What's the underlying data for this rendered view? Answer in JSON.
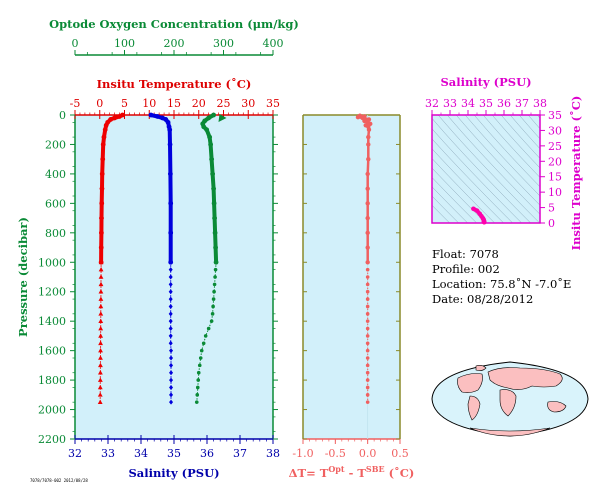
{
  "chart_data": [
    {
      "type": "line",
      "panel": "profile",
      "axes": {
        "oxygen": {
          "label": "Optode Oxygen Concentration (μm/kg)",
          "range": [
            0,
            400
          ],
          "ticks": [
            0,
            100,
            200,
            300,
            400
          ],
          "color": "#0a8a36"
        },
        "temperature": {
          "label": "Insitu Temperature (˚C)",
          "range": [
            -5,
            35
          ],
          "ticks": [
            -5,
            0,
            5,
            10,
            15,
            20,
            25,
            30,
            35
          ],
          "color": "#dd0000"
        },
        "salinity": {
          "label": "Salinity (PSU)",
          "range": [
            32,
            38
          ],
          "ticks": [
            32,
            33,
            34,
            35,
            36,
            37,
            38
          ],
          "color": "#0000aa"
        },
        "pressure": {
          "label": "Pressure (decibar)",
          "range": [
            0,
            2200
          ],
          "ticks": [
            0,
            200,
            400,
            600,
            800,
            1000,
            1200,
            1400,
            1600,
            1800,
            2000,
            2200
          ],
          "color": "#0a8a36",
          "inverted": true
        }
      },
      "grid": false,
      "series": [
        {
          "key": "temperature",
          "axis": "temperature",
          "color": "#ee0000",
          "points": [
            [
              0,
              4.6
            ],
            [
              10,
              4.0
            ],
            [
              20,
              3.0
            ],
            [
              30,
              2.2
            ],
            [
              50,
              1.6
            ],
            [
              70,
              1.3
            ],
            [
              100,
              1.1
            ],
            [
              150,
              0.85
            ],
            [
              200,
              0.7
            ],
            [
              300,
              0.6
            ],
            [
              400,
              0.5
            ],
            [
              500,
              0.45
            ],
            [
              600,
              0.4
            ],
            [
              700,
              0.35
            ],
            [
              800,
              0.33
            ],
            [
              900,
              0.3
            ],
            [
              1000,
              0.28
            ]
          ],
          "deep": [
            [
              1000,
              0.28
            ],
            [
              1050,
              0.27
            ],
            [
              1100,
              0.26
            ],
            [
              1150,
              0.25
            ],
            [
              1200,
              0.24
            ],
            [
              1250,
              0.23
            ],
            [
              1300,
              0.22
            ],
            [
              1350,
              0.21
            ],
            [
              1400,
              0.2
            ],
            [
              1450,
              0.19
            ],
            [
              1500,
              0.18
            ],
            [
              1550,
              0.17
            ],
            [
              1600,
              0.16
            ],
            [
              1650,
              0.15
            ],
            [
              1700,
              0.14
            ],
            [
              1750,
              0.13
            ],
            [
              1800,
              0.12
            ],
            [
              1850,
              0.11
            ],
            [
              1900,
              0.1
            ],
            [
              1950,
              0.09
            ]
          ],
          "deep_marker": "triangle"
        },
        {
          "key": "salinity",
          "axis": "salinity",
          "color": "#0000dd",
          "points": [
            [
              0,
              34.3
            ],
            [
              10,
              34.5
            ],
            [
              20,
              34.65
            ],
            [
              30,
              34.75
            ],
            [
              50,
              34.82
            ],
            [
              80,
              34.85
            ],
            [
              100,
              34.87
            ],
            [
              200,
              34.88
            ],
            [
              400,
              34.89
            ],
            [
              600,
              34.9
            ],
            [
              800,
              34.9
            ],
            [
              1000,
              34.9
            ]
          ],
          "deep": [
            [
              1000,
              34.9
            ],
            [
              1050,
              34.9
            ],
            [
              1100,
              34.9
            ],
            [
              1150,
              34.9
            ],
            [
              1200,
              34.9
            ],
            [
              1250,
              34.9
            ],
            [
              1300,
              34.9
            ],
            [
              1350,
              34.9
            ],
            [
              1400,
              34.9
            ],
            [
              1450,
              34.9
            ],
            [
              1500,
              34.9
            ],
            [
              1550,
              34.9
            ],
            [
              1600,
              34.91
            ],
            [
              1650,
              34.91
            ],
            [
              1700,
              34.91
            ],
            [
              1750,
              34.91
            ],
            [
              1800,
              34.91
            ],
            [
              1850,
              34.91
            ],
            [
              1900,
              34.91
            ],
            [
              1950,
              34.91
            ]
          ],
          "deep_marker": "diamond"
        },
        {
          "key": "oxygen",
          "axis": "oxygen",
          "color": "#0a8a36",
          "points": [
            [
              0,
              280
            ],
            [
              20,
              270
            ],
            [
              40,
              262
            ],
            [
              60,
              258
            ],
            [
              80,
              260
            ],
            [
              100,
              266
            ],
            [
              150,
              272
            ],
            [
              200,
              274
            ],
            [
              300,
              276
            ],
            [
              400,
              278
            ],
            [
              500,
              280
            ],
            [
              600,
              281
            ],
            [
              700,
              282
            ],
            [
              800,
              283
            ],
            [
              900,
              284
            ],
            [
              1000,
              285
            ]
          ],
          "deep": [
            [
              1000,
              285
            ],
            [
              1050,
              284
            ],
            [
              1100,
              283
            ],
            [
              1150,
              282
            ],
            [
              1200,
              281
            ],
            [
              1250,
              280
            ],
            [
              1300,
              279
            ],
            [
              1350,
              278
            ],
            [
              1400,
              276
            ],
            [
              1450,
              270
            ],
            [
              1500,
              264
            ],
            [
              1550,
              260
            ],
            [
              1600,
              256
            ],
            [
              1650,
              254
            ],
            [
              1700,
              252
            ],
            [
              1750,
              250
            ],
            [
              1800,
              249
            ],
            [
              1850,
              248
            ],
            [
              1900,
              247
            ],
            [
              1950,
              246
            ]
          ],
          "deep_marker": "circle"
        }
      ],
      "oxygen_arrow": {
        "pressure": 20,
        "value": 298
      }
    },
    {
      "type": "scatter",
      "panel": "delta-t",
      "xlabel_parts": [
        "ΔT= T",
        "Opt",
        " - T",
        "SBE",
        " (˚C)"
      ],
      "xlim": [
        -1.0,
        0.5
      ],
      "xticks": [
        "-1.0",
        "-0.5",
        "0.0",
        "0.5"
      ],
      "xtick_values": [
        -1.0,
        -0.5,
        0.0,
        0.5
      ],
      "color": "#f06060",
      "points": [
        [
          5,
          -0.12
        ],
        [
          10,
          -0.05
        ],
        [
          15,
          -0.15
        ],
        [
          20,
          -0.08
        ],
        [
          30,
          0.02
        ],
        [
          40,
          -0.05
        ],
        [
          50,
          0.0
        ],
        [
          60,
          0.04
        ],
        [
          70,
          -0.03
        ],
        [
          80,
          0.01
        ],
        [
          100,
          0.02
        ],
        [
          150,
          0.01
        ],
        [
          200,
          0.01
        ],
        [
          300,
          0.01
        ],
        [
          400,
          0.0
        ],
        [
          500,
          0.0
        ],
        [
          600,
          0.0
        ],
        [
          700,
          0.0
        ],
        [
          800,
          0.0
        ],
        [
          900,
          0.0
        ],
        [
          1000,
          0.0
        ]
      ],
      "deep": [
        [
          1050,
          0.0
        ],
        [
          1100,
          0.0
        ],
        [
          1150,
          0.0
        ],
        [
          1200,
          0.0
        ],
        [
          1250,
          0.0
        ],
        [
          1300,
          0.0
        ],
        [
          1350,
          0.0
        ],
        [
          1400,
          0.0
        ],
        [
          1450,
          0.0
        ],
        [
          1500,
          0.0
        ],
        [
          1550,
          0.0
        ],
        [
          1600,
          0.0
        ],
        [
          1650,
          0.0
        ],
        [
          1700,
          0.0
        ],
        [
          1750,
          0.0
        ],
        [
          1800,
          0.0
        ],
        [
          1850,
          0.0
        ],
        [
          1900,
          0.0
        ],
        [
          1950,
          0.0
        ]
      ]
    },
    {
      "type": "scatter",
      "panel": "ts-diagram",
      "xlabel": "Salinity (PSU)",
      "ylabel": "Insitu Temperature (˚C)",
      "xlim": [
        32,
        38
      ],
      "ylim": [
        0,
        35
      ],
      "xticks": [
        32,
        33,
        34,
        35,
        36,
        37,
        38
      ],
      "yticks": [
        0,
        5,
        10,
        15,
        20,
        25,
        30,
        35
      ],
      "color": "#ff00aa",
      "points": [
        [
          34.3,
          4.6
        ],
        [
          34.5,
          4.0
        ],
        [
          34.65,
          3.0
        ],
        [
          34.75,
          2.2
        ],
        [
          34.82,
          1.6
        ],
        [
          34.85,
          1.3
        ],
        [
          34.87,
          1.1
        ],
        [
          34.88,
          0.85
        ],
        [
          34.88,
          0.7
        ],
        [
          34.89,
          0.5
        ],
        [
          34.9,
          0.4
        ],
        [
          34.9,
          0.3
        ],
        [
          34.9,
          0.25
        ]
      ]
    }
  ],
  "info": {
    "float": "Float:  7078",
    "profile": "Profile:  002",
    "location": "Location:  75.8˚N  -7.0˚E",
    "date": "Date:  08/28/2012"
  },
  "footer_tag": "7078/7078-002 2012/08/28",
  "colors": {
    "panel_bg": "#d2f0fa",
    "map_ocean": "#d9f3fb",
    "land": "#fbbfc0",
    "ts_color": "#dd00cc"
  }
}
